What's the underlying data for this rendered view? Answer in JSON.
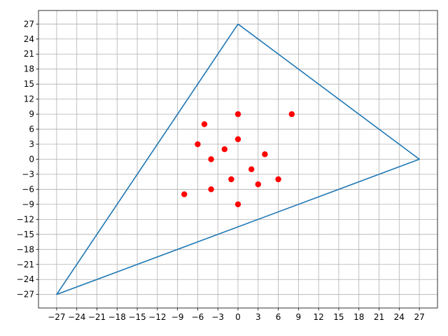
{
  "chart_data": {
    "type": "scatter",
    "title": "",
    "xlabel": "",
    "ylabel": "",
    "xlim": [
      -29.7,
      29.7
    ],
    "ylim": [
      -29.7,
      29.7
    ],
    "grid": true,
    "ticks": [
      -27,
      -24,
      -21,
      -18,
      -15,
      -12,
      -9,
      -6,
      -3,
      0,
      3,
      6,
      9,
      12,
      15,
      18,
      21,
      24,
      27
    ],
    "polygon": {
      "color": "#1f77b4",
      "points": [
        [
          0,
          27
        ],
        [
          27,
          0
        ],
        [
          -27,
          -27
        ],
        [
          0,
          27
        ]
      ]
    },
    "points": {
      "color": "#ff0000",
      "x": [
        0,
        8,
        -5,
        -6,
        -2,
        0,
        4,
        -4,
        2,
        -1,
        6,
        3,
        -8,
        -4,
        0
      ],
      "y": [
        9,
        9,
        7,
        3,
        2,
        4,
        1,
        0,
        -2,
        -4,
        -4,
        -5,
        -7,
        -6,
        -9
      ]
    }
  }
}
